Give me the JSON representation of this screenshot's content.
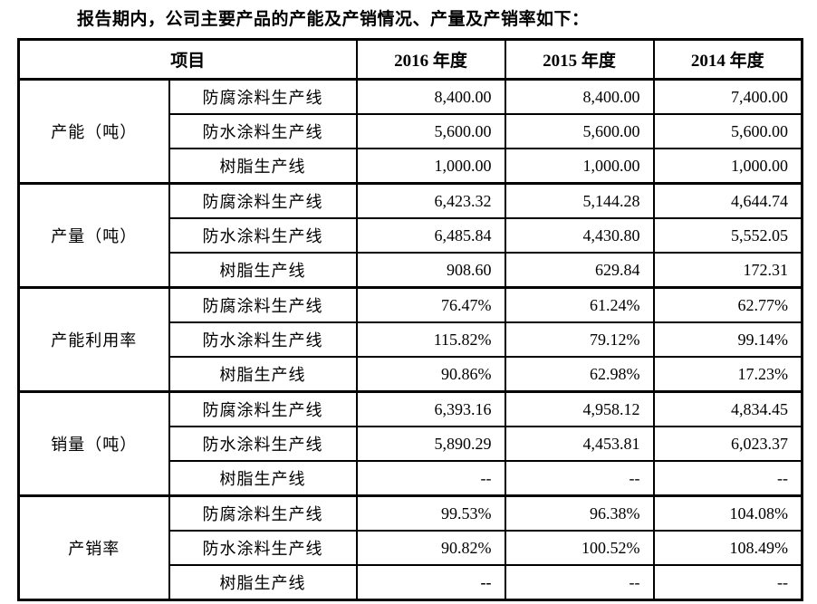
{
  "title": "报告期内，公司主要产品的产能及产销情况、产量及产销率如下：",
  "table": {
    "header": {
      "item": "项目",
      "years": [
        "2016 年度",
        "2015 年度",
        "2014 年度"
      ]
    },
    "groups": [
      {
        "label": "产能（吨）",
        "rows": [
          {
            "line": "防腐涂料生产线",
            "values": [
              "8,400.00",
              "8,400.00",
              "7,400.00"
            ]
          },
          {
            "line": "防水涂料生产线",
            "values": [
              "5,600.00",
              "5,600.00",
              "5,600.00"
            ]
          },
          {
            "line": "树脂生产线",
            "values": [
              "1,000.00",
              "1,000.00",
              "1,000.00"
            ]
          }
        ]
      },
      {
        "label": "产量（吨）",
        "rows": [
          {
            "line": "防腐涂料生产线",
            "values": [
              "6,423.32",
              "5,144.28",
              "4,644.74"
            ]
          },
          {
            "line": "防水涂料生产线",
            "values": [
              "6,485.84",
              "4,430.80",
              "5,552.05"
            ]
          },
          {
            "line": "树脂生产线",
            "values": [
              "908.60",
              "629.84",
              "172.31"
            ]
          }
        ]
      },
      {
        "label": "产能利用率",
        "rows": [
          {
            "line": "防腐涂料生产线",
            "values": [
              "76.47%",
              "61.24%",
              "62.77%"
            ]
          },
          {
            "line": "防水涂料生产线",
            "values": [
              "115.82%",
              "79.12%",
              "99.14%"
            ]
          },
          {
            "line": "树脂生产线",
            "values": [
              "90.86%",
              "62.98%",
              "17.23%"
            ]
          }
        ]
      },
      {
        "label": "销量（吨）",
        "rows": [
          {
            "line": "防腐涂料生产线",
            "values": [
              "6,393.16",
              "4,958.12",
              "4,834.45"
            ]
          },
          {
            "line": "防水涂料生产线",
            "values": [
              "5,890.29",
              "4,453.81",
              "6,023.37"
            ]
          },
          {
            "line": "树脂生产线",
            "values": [
              "--",
              "--",
              "--"
            ]
          }
        ]
      },
      {
        "label": "产销率",
        "rows": [
          {
            "line": "防腐涂料生产线",
            "values": [
              "99.53%",
              "96.38%",
              "104.08%"
            ]
          },
          {
            "line": "防水涂料生产线",
            "values": [
              "90.82%",
              "100.52%",
              "108.49%"
            ]
          },
          {
            "line": "树脂生产线",
            "values": [
              "--",
              "--",
              "--"
            ],
            "bold": [
              true,
              false,
              false
            ]
          }
        ]
      }
    ]
  }
}
